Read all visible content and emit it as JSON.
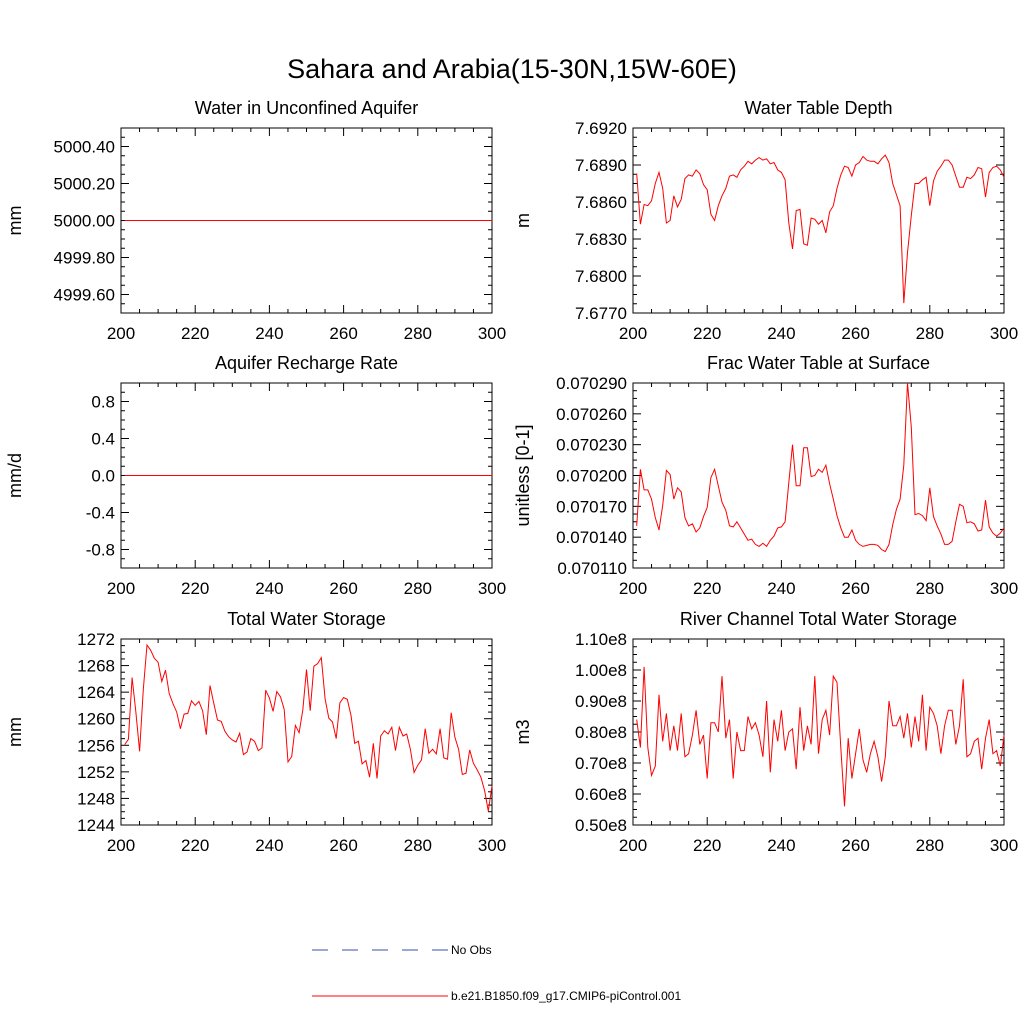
{
  "main_title": "Sahara and Arabia(15-30N,15W-60E)",
  "colors": {
    "model": "#ff0000",
    "obs": "#3a4fa8",
    "axis": "#000000"
  },
  "legend": [
    {
      "label": "No Obs",
      "style": "dashed",
      "color": "#3a4fa8"
    },
    {
      "label": "b.e21.B1850.f09_g17.CMIP6-piControl.001",
      "style": "solid",
      "color": "#ff0000"
    }
  ],
  "chart_data": [
    {
      "type": "line",
      "title": "Water in Unconfined Aquifer",
      "ylabel": "mm",
      "xlim": [
        200,
        300
      ],
      "ylim": [
        4999.5,
        5000.5
      ],
      "xticks": [
        200,
        220,
        240,
        260,
        280,
        300
      ],
      "yticks": [
        4999.6,
        4999.8,
        5000.0,
        5000.2,
        5000.4
      ],
      "ytick_labels": [
        "4999.60",
        "4999.80",
        "5000.00",
        "5000.20",
        "5000.40"
      ],
      "x_start": 201,
      "values": [
        5000,
        5000
      ]
    },
    {
      "type": "line",
      "title": "Water Table Depth",
      "ylabel": "m",
      "xlim": [
        200,
        300
      ],
      "ylim": [
        7.677,
        7.692
      ],
      "xticks": [
        200,
        220,
        240,
        260,
        280,
        300
      ],
      "yticks": [
        7.677,
        7.68,
        7.683,
        7.686,
        7.689,
        7.692
      ],
      "ytick_labels": [
        "7.6770",
        "7.6800",
        "7.6830",
        "7.6860",
        "7.6890",
        "7.6920"
      ],
      "x_start": 201,
      "values": [
        7.6883,
        7.6842,
        7.6858,
        7.6857,
        7.6861,
        7.6875,
        7.6884,
        7.6871,
        7.6843,
        7.6845,
        7.6865,
        7.6856,
        7.6862,
        7.6879,
        7.6882,
        7.6881,
        7.6886,
        7.6883,
        7.6874,
        7.687,
        7.685,
        7.6845,
        7.6857,
        7.6865,
        7.6871,
        7.6881,
        7.6882,
        7.688,
        7.6886,
        7.6889,
        7.6893,
        7.6891,
        7.6894,
        7.6896,
        7.6894,
        7.6895,
        7.6891,
        7.6892,
        7.6886,
        7.6884,
        7.6878,
        7.6843,
        7.6822,
        7.6853,
        7.6854,
        7.6826,
        7.6825,
        7.6847,
        7.6846,
        7.6842,
        7.6845,
        7.6835,
        7.6852,
        7.6857,
        7.6871,
        7.6882,
        7.6889,
        7.6888,
        7.6881,
        7.689,
        7.6892,
        7.6897,
        7.6894,
        7.6893,
        7.6893,
        7.6891,
        7.6895,
        7.6898,
        7.6892,
        7.6875,
        7.6866,
        7.6857,
        7.6778,
        7.6819,
        7.6849,
        7.6875,
        7.6875,
        7.6878,
        7.688,
        7.6857,
        7.6877,
        7.6885,
        7.6889,
        7.6894,
        7.6894,
        7.689,
        7.6881,
        7.6872,
        7.6872,
        7.688,
        7.6879,
        7.6882,
        7.6888,
        7.6887,
        7.6864,
        7.6884,
        7.6888,
        7.6889,
        7.6886,
        7.688
      ]
    },
    {
      "type": "line",
      "title": "Aquifer Recharge Rate",
      "ylabel": "mm/d",
      "xlim": [
        200,
        300
      ],
      "ylim": [
        -1.0,
        1.0
      ],
      "xticks": [
        200,
        220,
        240,
        260,
        280,
        300
      ],
      "yticks": [
        -0.8,
        -0.4,
        0.0,
        0.4,
        0.8
      ],
      "ytick_labels": [
        "-0.8",
        "-0.4",
        "0.0",
        "0.4",
        "0.8"
      ],
      "x_start": 201,
      "values": [
        0,
        0
      ]
    },
    {
      "type": "line",
      "title": "Frac Water Table at Surface",
      "ylabel": "unitless [0-1]",
      "xlim": [
        200,
        300
      ],
      "ylim": [
        0.07011,
        0.07029
      ],
      "xticks": [
        200,
        220,
        240,
        260,
        280,
        300
      ],
      "yticks": [
        0.07011,
        0.07014,
        0.07017,
        0.0702,
        0.07023,
        0.07026,
        0.07029
      ],
      "ytick_labels": [
        "0.070110",
        "0.070140",
        "0.070170",
        "0.070200",
        "0.070230",
        "0.070260",
        "0.070290"
      ],
      "x_start": 201,
      "values": [
        0.070151,
        0.070206,
        0.070186,
        0.070186,
        0.070177,
        0.070159,
        0.070147,
        0.070171,
        0.070205,
        0.070201,
        0.070177,
        0.070188,
        0.070184,
        0.070159,
        0.070151,
        0.070153,
        0.070145,
        0.070149,
        0.07016,
        0.070169,
        0.070198,
        0.070206,
        0.07019,
        0.070174,
        0.070166,
        0.070151,
        0.07015,
        0.070155,
        0.070149,
        0.070143,
        0.070137,
        0.070138,
        0.070133,
        0.070131,
        0.070134,
        0.070131,
        0.070137,
        0.070141,
        0.070149,
        0.07015,
        0.070155,
        0.070193,
        0.07023,
        0.07019,
        0.07019,
        0.070227,
        0.070227,
        0.070199,
        0.0702,
        0.070206,
        0.070203,
        0.07021,
        0.070192,
        0.070177,
        0.070161,
        0.070149,
        0.07014,
        0.07014,
        0.070147,
        0.070137,
        0.070133,
        0.070131,
        0.070132,
        0.070133,
        0.070133,
        0.070132,
        0.070128,
        0.070126,
        0.070133,
        0.070152,
        0.070167,
        0.070177,
        0.07021,
        0.07029,
        0.070247,
        0.070162,
        0.070163,
        0.070161,
        0.070156,
        0.070188,
        0.07016,
        0.070151,
        0.070143,
        0.070133,
        0.070133,
        0.070136,
        0.070155,
        0.070172,
        0.07017,
        0.070154,
        0.070155,
        0.070153,
        0.070146,
        0.070147,
        0.070176,
        0.07015,
        0.070144,
        0.070141,
        0.070144,
        0.070149
      ]
    },
    {
      "type": "line",
      "title": "Total Water Storage",
      "ylabel": "mm",
      "xlim": [
        200,
        300
      ],
      "ylim": [
        1244,
        1272
      ],
      "xticks": [
        200,
        220,
        240,
        260,
        280,
        300
      ],
      "yticks": [
        1244,
        1248,
        1252,
        1256,
        1260,
        1264,
        1268,
        1272
      ],
      "ytick_labels": [
        "1244",
        "1248",
        "1252",
        "1256",
        "1260",
        "1264",
        "1268",
        "1272"
      ],
      "x_start": 201,
      "values": [
        1256.1,
        1256.9,
        1266.2,
        1261.1,
        1255.1,
        1264.4,
        1271.1,
        1270.3,
        1269.1,
        1268.5,
        1265.6,
        1267.3,
        1263.8,
        1262.3,
        1261.0,
        1258.5,
        1260.7,
        1260.8,
        1262.7,
        1262.0,
        1262.6,
        1261.2,
        1257.6,
        1265.0,
        1262.3,
        1259.8,
        1259.6,
        1258.1,
        1257.3,
        1256.8,
        1256.5,
        1257.8,
        1254.6,
        1255.0,
        1257.0,
        1256.6,
        1255.2,
        1255.6,
        1264.3,
        1263.1,
        1261.1,
        1264.1,
        1263.3,
        1261.4,
        1253.5,
        1254.3,
        1259.0,
        1257.9,
        1261.3,
        1267.4,
        1261.2,
        1267.9,
        1268.3,
        1269.2,
        1263.0,
        1260.1,
        1259.5,
        1257.0,
        1262.4,
        1263.2,
        1262.9,
        1260.5,
        1256.3,
        1256.6,
        1253.2,
        1253.7,
        1251.2,
        1256.3,
        1251.0,
        1257.4,
        1258.2,
        1257.7,
        1258.7,
        1255.2,
        1258.7,
        1257.4,
        1257.7,
        1255.4,
        1251.9,
        1253.0,
        1253.8,
        1258.5,
        1254.8,
        1255.4,
        1254.7,
        1258.5,
        1254.1,
        1253.9,
        1260.9,
        1257.2,
        1255.4,
        1251.6,
        1251.8,
        1255.3,
        1253.3,
        1252.3,
        1251.2,
        1249.2,
        1246.1,
        1249.9
      ]
    },
    {
      "type": "line",
      "title": "River Channel Total Water Storage",
      "ylabel": "m3",
      "xlim": [
        200,
        300
      ],
      "ylim": [
        0.5,
        1.1
      ],
      "yscale_note": "values in units of 1e8",
      "xticks": [
        200,
        220,
        240,
        260,
        280,
        300
      ],
      "yticks": [
        0.5,
        0.6,
        0.7,
        0.8,
        0.9,
        1.0,
        1.1
      ],
      "ytick_labels": [
        "0.50e8",
        "0.60e8",
        "0.70e8",
        "0.80e8",
        "0.90e8",
        "1.00e8",
        "1.10e8"
      ],
      "x_start": 201,
      "values": [
        0.84,
        0.75,
        1.01,
        0.75,
        0.66,
        0.69,
        0.92,
        0.77,
        0.86,
        0.74,
        0.82,
        0.74,
        0.86,
        0.72,
        0.73,
        0.79,
        0.87,
        0.76,
        0.79,
        0.65,
        0.83,
        0.83,
        0.8,
        0.98,
        0.78,
        0.84,
        0.65,
        0.8,
        0.74,
        0.74,
        0.85,
        0.81,
        0.83,
        0.79,
        0.72,
        0.9,
        0.67,
        0.84,
        0.77,
        0.87,
        0.74,
        0.8,
        0.81,
        0.68,
        0.88,
        0.74,
        0.82,
        0.76,
        0.98,
        0.73,
        0.84,
        0.87,
        0.79,
        0.98,
        0.96,
        0.75,
        0.56,
        0.78,
        0.65,
        0.73,
        0.81,
        0.71,
        0.67,
        0.73,
        0.77,
        0.72,
        0.64,
        0.72,
        0.9,
        0.82,
        0.82,
        0.85,
        0.78,
        0.86,
        0.75,
        0.85,
        0.77,
        0.92,
        0.74,
        0.88,
        0.86,
        0.82,
        0.73,
        0.82,
        0.87,
        0.87,
        0.76,
        0.82,
        0.97,
        0.72,
        0.73,
        0.77,
        0.78,
        0.68,
        0.78,
        0.84,
        0.73,
        0.74,
        0.69,
        0.79
      ]
    }
  ]
}
